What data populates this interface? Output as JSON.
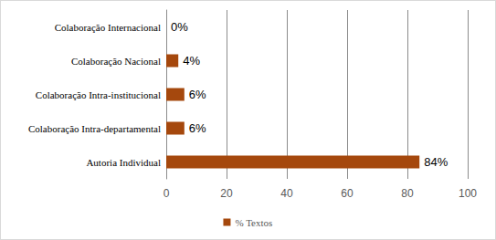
{
  "chart_data": {
    "type": "bar",
    "orientation": "horizontal",
    "categories": [
      "Colaboração Internacional",
      "Colaboração Nacional",
      "Colaboração Intra-institucional",
      "Colaboração Intra-departamental",
      "Autoria Individual"
    ],
    "series": [
      {
        "name": "% Textos",
        "color": "#a5480d",
        "values": [
          0,
          4,
          6,
          6,
          84
        ],
        "value_labels": [
          "0%",
          "4%",
          "6%",
          "6%",
          "84%"
        ]
      }
    ],
    "xlim": [
      0,
      100
    ],
    "xticks": [
      0,
      20,
      40,
      60,
      80,
      100
    ],
    "grid": true,
    "legend": "bottom",
    "data_labels": true
  }
}
